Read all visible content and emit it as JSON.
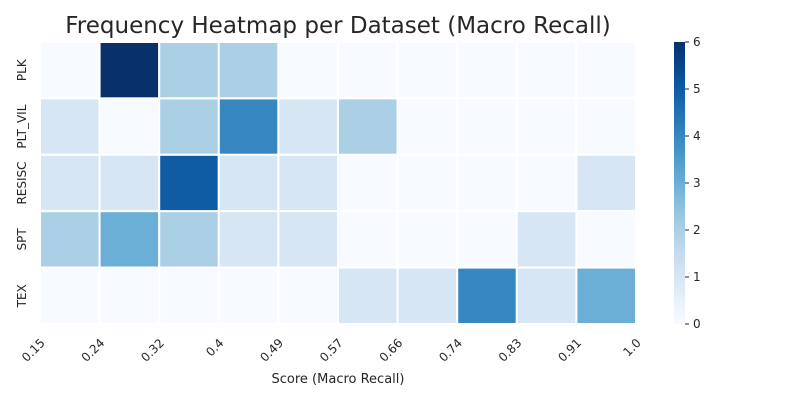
{
  "chart_data": {
    "type": "heatmap",
    "title": "Frequency Heatmap per Dataset (Macro Recall)",
    "xlabel": "Score (Macro Recall)",
    "ylabel": "",
    "x_tick_labels": [
      "0.15",
      "0.24",
      "0.32",
      "0.4",
      "0.49",
      "0.57",
      "0.66",
      "0.74",
      "0.83",
      "0.91",
      "1.0"
    ],
    "rows": [
      "PLK",
      "PLT_VIL",
      "RESISC",
      "SPT",
      "TEX"
    ],
    "values": [
      [
        0,
        6,
        2,
        2,
        0,
        0,
        0,
        0,
        0,
        0
      ],
      [
        1,
        0,
        2,
        4,
        1,
        2,
        0,
        0,
        0,
        0
      ],
      [
        1,
        1,
        5,
        1,
        1,
        0,
        0,
        0,
        0,
        1
      ],
      [
        2,
        3,
        2,
        1,
        1,
        0,
        0,
        0,
        1,
        0
      ],
      [
        0,
        0,
        0,
        0,
        0,
        1,
        1,
        4,
        1,
        3
      ]
    ],
    "colorbar": {
      "min": 0,
      "max": 6,
      "ticks": [
        "0",
        "1",
        "2",
        "3",
        "4",
        "5",
        "6"
      ]
    },
    "colormap": "Blues",
    "colors": {
      "low": "#f7fbff",
      "high": "#08306b",
      "cell_border": "#ffffff"
    },
    "grid": false
  }
}
